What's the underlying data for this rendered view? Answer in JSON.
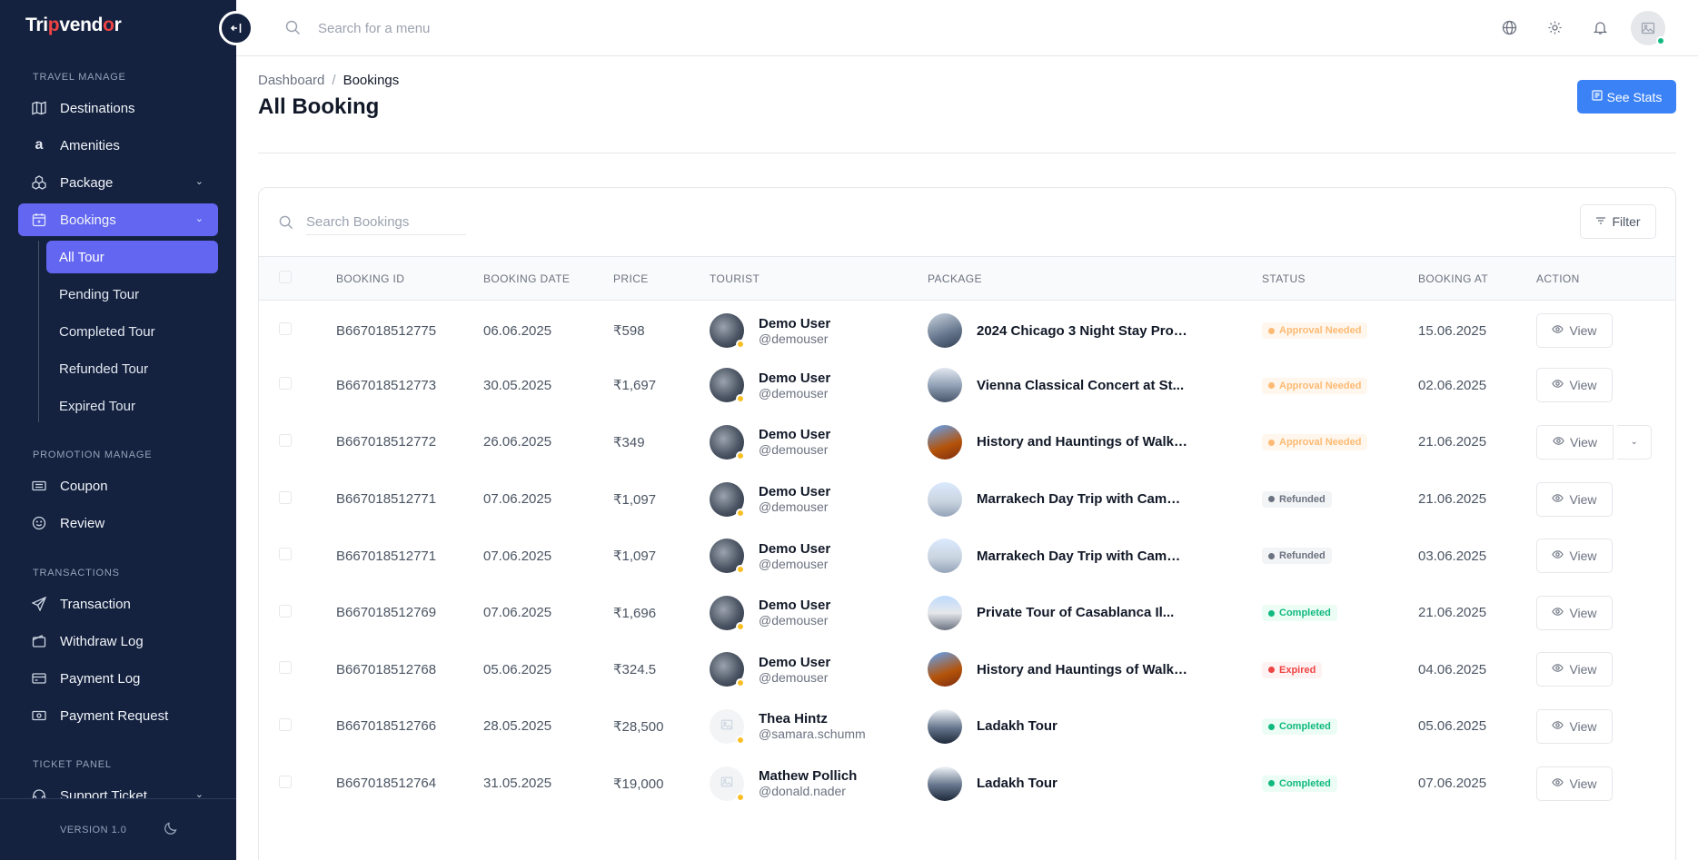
{
  "app": {
    "logo_text": "Tripvendor"
  },
  "sidebar": {
    "sections": {
      "travel": "TRAVEL MANAGE",
      "promotion": "PROMOTION MANAGE",
      "transactions": "TRANSACTIONS",
      "ticket": "TICKET PANEL"
    },
    "items": {
      "destinations": "Destinations",
      "amenities": "Amenities",
      "package": "Package",
      "bookings": "Bookings",
      "coupon": "Coupon",
      "review": "Review",
      "transaction": "Transaction",
      "withdraw_log": "Withdraw Log",
      "payment_log": "Payment Log",
      "payment_request": "Payment Request",
      "support_ticket": "Support Ticket"
    },
    "bookings_sub": {
      "all": "All Tour",
      "pending": "Pending Tour",
      "completed": "Completed Tour",
      "refunded": "Refunded Tour",
      "expired": "Expired Tour"
    },
    "version": "VERSION 1.0"
  },
  "topbar": {
    "search_placeholder": "Search for a menu"
  },
  "header": {
    "breadcrumb": {
      "root": "Dashboard",
      "separator": "/",
      "current": "Bookings"
    },
    "title": "All Booking",
    "stats_button": "See Stats"
  },
  "bookings": {
    "search_placeholder": "Search Bookings",
    "filter_label": "Filter",
    "columns": {
      "booking_id": "BOOKING ID",
      "booking_date": "BOOKING DATE",
      "price": "PRICE",
      "tourist": "TOURIST",
      "package": "PACKAGE",
      "status": "STATUS",
      "booking_at": "BOOKING AT",
      "action": "ACTION"
    },
    "view_label": "View",
    "rows": [
      {
        "id": "B667018512775",
        "date": "06.06.2025",
        "price": "₹598",
        "tourist_name": "Demo User",
        "tourist_handle": "@demouser",
        "package": "2024 Chicago 3 Night Stay Prog...",
        "status": "Approval Needed",
        "booking_at": "15.06.2025"
      },
      {
        "id": "B667018512773",
        "date": "30.05.2025",
        "price": "₹1,697",
        "tourist_name": "Demo User",
        "tourist_handle": "@demouser",
        "package": "Vienna Classical Concert at St...",
        "status": "Approval Needed",
        "booking_at": "02.06.2025"
      },
      {
        "id": "B667018512772",
        "date": "26.06.2025",
        "price": "₹349",
        "tourist_name": "Demo User",
        "tourist_handle": "@demouser",
        "package": "History and Hauntings of Walki...",
        "status": "Approval Needed",
        "booking_at": "21.06.2025"
      },
      {
        "id": "B667018512771",
        "date": "07.06.2025",
        "price": "₹1,097",
        "tourist_name": "Demo User",
        "tourist_handle": "@demouser",
        "package": "Marrakech Day Trip with Camel...",
        "status": "Refunded",
        "booking_at": "21.06.2025"
      },
      {
        "id": "B667018512771",
        "date": "07.06.2025",
        "price": "₹1,097",
        "tourist_name": "Demo User",
        "tourist_handle": "@demouser",
        "package": "Marrakech Day Trip with Camel...",
        "status": "Refunded",
        "booking_at": "03.06.2025"
      },
      {
        "id": "B667018512769",
        "date": "07.06.2025",
        "price": "₹1,696",
        "tourist_name": "Demo User",
        "tourist_handle": "@demouser",
        "package": "Private Tour of Casablanca Il...",
        "status": "Completed",
        "booking_at": "21.06.2025"
      },
      {
        "id": "B667018512768",
        "date": "05.06.2025",
        "price": "₹324.5",
        "tourist_name": "Demo User",
        "tourist_handle": "@demouser",
        "package": "History and Hauntings of Walki...",
        "status": "Expired",
        "booking_at": "04.06.2025"
      },
      {
        "id": "B667018512766",
        "date": "28.05.2025",
        "price": "₹28,500",
        "tourist_name": "Thea Hintz",
        "tourist_handle": "@samara.schumm",
        "package": "Ladakh Tour",
        "status": "Completed",
        "booking_at": "05.06.2025"
      },
      {
        "id": "B667018512764",
        "date": "31.05.2025",
        "price": "₹19,000",
        "tourist_name": "Mathew Pollich",
        "tourist_handle": "@donald.nader",
        "package": "Ladakh Tour",
        "status": "Completed",
        "booking_at": "07.06.2025"
      }
    ]
  },
  "colors": {
    "sidebar_bg": "#14213f",
    "accent": "#6366f1",
    "primary_button": "#3b82f6",
    "approval": "#fdba74",
    "completed": "#10b981",
    "expired": "#ef4444",
    "refunded": "#6b7280"
  }
}
